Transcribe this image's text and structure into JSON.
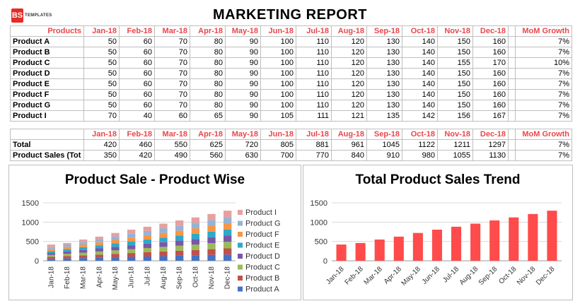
{
  "logo": {
    "mark": "BS",
    "text": "TEMPLATES"
  },
  "title": "MARKETING REPORT",
  "months": [
    "Jan-18",
    "Feb-18",
    "Mar-18",
    "Apr-18",
    "May-18",
    "Jun-18",
    "Jul-18",
    "Aug-18",
    "Sep-18",
    "Oct-18",
    "Nov-18",
    "Dec-18"
  ],
  "table1": {
    "corner": "Products",
    "growth_header": "MoM Growth",
    "rows": [
      {
        "label": "Product A",
        "values": [
          50,
          60,
          70,
          80,
          90,
          100,
          110,
          120,
          130,
          140,
          150,
          160
        ],
        "growth": "7%"
      },
      {
        "label": "Product B",
        "values": [
          50,
          60,
          70,
          80,
          90,
          100,
          110,
          120,
          130,
          140,
          150,
          160
        ],
        "growth": "7%"
      },
      {
        "label": "Product C",
        "values": [
          50,
          60,
          70,
          80,
          90,
          100,
          110,
          120,
          130,
          140,
          155,
          170
        ],
        "growth": "10%"
      },
      {
        "label": "Product D",
        "values": [
          50,
          60,
          70,
          80,
          90,
          100,
          110,
          120,
          130,
          140,
          150,
          160
        ],
        "growth": "7%"
      },
      {
        "label": "Product E",
        "values": [
          50,
          60,
          70,
          80,
          90,
          100,
          110,
          120,
          130,
          140,
          150,
          160
        ],
        "growth": "7%"
      },
      {
        "label": "Product F",
        "values": [
          50,
          60,
          70,
          80,
          90,
          100,
          110,
          120,
          130,
          140,
          150,
          160
        ],
        "growth": "7%"
      },
      {
        "label": "Product G",
        "values": [
          50,
          60,
          70,
          80,
          90,
          100,
          110,
          120,
          130,
          140,
          150,
          160
        ],
        "growth": "7%"
      },
      {
        "label": "Product I",
        "values": [
          70,
          40,
          60,
          65,
          90,
          105,
          111,
          121,
          135,
          142,
          156,
          167
        ],
        "growth": "7%"
      }
    ]
  },
  "table2": {
    "corner": "",
    "growth_header": "MoM Growth",
    "rows": [
      {
        "label": "Total",
        "values": [
          420,
          460,
          550,
          625,
          720,
          805,
          881,
          961,
          1045,
          1122,
          1211,
          1297
        ],
        "growth": "7%"
      },
      {
        "label": "Product Sales (Tot",
        "values": [
          350,
          420,
          490,
          560,
          630,
          700,
          770,
          840,
          910,
          980,
          1055,
          1130
        ],
        "growth": "7%"
      }
    ]
  },
  "colors": {
    "accent": "#e8474c",
    "bar_trend": "#ff4b4b"
  },
  "chart_data": [
    {
      "type": "bar",
      "stacked": true,
      "title": "Product Sale - Product Wise",
      "categories": [
        "Jan-18",
        "Feb-18",
        "Mar-18",
        "Apr-18",
        "May-18",
        "Jun-18",
        "Jul-18",
        "Aug-18",
        "Sep-18",
        "Oct-18",
        "Nov-18",
        "Dec-18"
      ],
      "ylim": [
        0,
        1500
      ],
      "yticks": [
        "0",
        "500",
        "1000",
        "1500"
      ],
      "legend": "right",
      "series": [
        {
          "name": "Product A",
          "color": "#4472c4",
          "values": [
            50,
            60,
            70,
            80,
            90,
            100,
            110,
            120,
            130,
            140,
            150,
            160
          ]
        },
        {
          "name": "Product B",
          "color": "#c0504d",
          "values": [
            50,
            60,
            70,
            80,
            90,
            100,
            110,
            120,
            130,
            140,
            150,
            160
          ]
        },
        {
          "name": "Product C",
          "color": "#9bbb59",
          "values": [
            50,
            60,
            70,
            80,
            90,
            100,
            110,
            120,
            130,
            140,
            155,
            170
          ]
        },
        {
          "name": "Product D",
          "color": "#7a56a8",
          "values": [
            50,
            60,
            70,
            80,
            90,
            100,
            110,
            120,
            130,
            140,
            150,
            160
          ]
        },
        {
          "name": "Product E",
          "color": "#2fa8c9",
          "values": [
            50,
            60,
            70,
            80,
            90,
            100,
            110,
            120,
            130,
            140,
            150,
            160
          ]
        },
        {
          "name": "Product F",
          "color": "#f79646",
          "values": [
            50,
            60,
            70,
            80,
            90,
            100,
            110,
            120,
            130,
            140,
            150,
            160
          ]
        },
        {
          "name": "Product G",
          "color": "#95b3d7",
          "values": [
            50,
            60,
            70,
            80,
            90,
            100,
            110,
            120,
            130,
            140,
            150,
            160
          ]
        },
        {
          "name": "Product I",
          "color": "#e6a09e",
          "values": [
            70,
            40,
            60,
            65,
            90,
            105,
            111,
            121,
            135,
            142,
            156,
            167
          ]
        }
      ]
    },
    {
      "type": "bar",
      "title": "Total Product Sales Trend",
      "categories": [
        "Jan-18",
        "Feb-18",
        "Mar-18",
        "Apr-18",
        "May-18",
        "Jun-18",
        "Jul-18",
        "Aug-18",
        "Sep-18",
        "Oct-18",
        "Nov-18",
        "Dec-18"
      ],
      "ylim": [
        0,
        1500
      ],
      "yticks": [
        "0",
        "500",
        "1000",
        "1500"
      ],
      "values": [
        420,
        460,
        550,
        625,
        720,
        805,
        881,
        961,
        1045,
        1122,
        1211,
        1297
      ]
    }
  ]
}
